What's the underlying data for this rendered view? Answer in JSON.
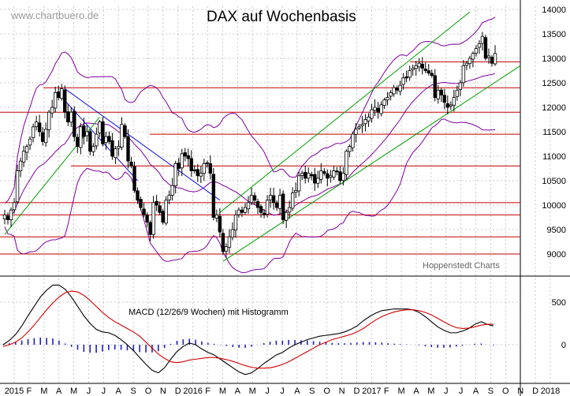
{
  "watermark": "www.chartbuero.de",
  "footer_note": "Hoppenstedt Charts",
  "chart_data": [
    {
      "type": "candlestick",
      "title": "DAX auf Wochenbasis",
      "y_ticks": [
        9000,
        9500,
        10000,
        10500,
        11000,
        11500,
        12000,
        12500,
        13000,
        13500,
        14000
      ],
      "ylim": [
        8750,
        14000
      ],
      "horizontal_levels": [
        9000,
        9350,
        9800,
        10050,
        10800,
        11450,
        11900,
        12400,
        12930
      ],
      "grid": true,
      "colors": {
        "up": "#ffffff",
        "down": "#000000",
        "bollinger": "#8000a0",
        "trendline": "#1010e0",
        "channel": "#00a000",
        "support": "#c00000"
      },
      "series": [
        {
          "name": "DAX weekly close",
          "values": [
            9800,
            9700,
            9900,
            10050,
            10700,
            10900,
            11100,
            11200,
            11350,
            11600,
            11700,
            11500,
            11300,
            11550,
            11900,
            12000,
            12300,
            12200,
            12380,
            11900,
            11700,
            11900,
            11400,
            11200,
            11600,
            11400,
            11500,
            11100,
            11200,
            11450,
            11700,
            11250,
            11400,
            11300,
            11000,
            11150,
            11200,
            11650,
            11400,
            10900,
            10800,
            10300,
            10100,
            9950,
            9800,
            9650,
            9400,
            10050,
            10000,
            9850,
            9650,
            10100,
            10200,
            10400,
            10850,
            10750,
            11050,
            11000,
            10950,
            10700,
            10700,
            10600,
            10650,
            10850,
            10850,
            10650,
            9750,
            9800,
            9450,
            9050,
            9150,
            9350,
            9500,
            9800,
            9900,
            9850,
            9950,
            10050,
            10200,
            10100,
            9950,
            9850,
            9800,
            10100,
            10200,
            10050,
            9950,
            10200,
            9700,
            9850,
            9950,
            10250,
            10300,
            10600,
            10650,
            10550,
            10650,
            10600,
            10450,
            10550,
            10700,
            10650,
            10550,
            10600,
            10700,
            10680,
            10500,
            10650,
            11100,
            11200,
            11450,
            11550,
            11600,
            11650,
            11750,
            11800,
            11950,
            12000,
            11900,
            12050,
            12150,
            12200,
            12300,
            12400,
            12350,
            12450,
            12600,
            12600,
            12750,
            12800,
            12850,
            12900,
            12800,
            12750,
            12700,
            12650,
            12200,
            12350,
            12250,
            12100,
            12000,
            12050,
            12200,
            12350,
            12500,
            12850,
            12900,
            13000,
            13100,
            13200,
            13300,
            13450,
            13000,
            13050,
            12900,
            13100
          ]
        }
      ]
    },
    {
      "type": "line",
      "title": "MACD (12/26/9 Wochen) mit Histogramm",
      "y_ticks": [
        0,
        500
      ],
      "ylim": [
        -500,
        800
      ],
      "x_ticks": [
        "2015",
        "F",
        "M",
        "A",
        "M",
        "J",
        "J",
        "A",
        "S",
        "O",
        "N",
        "D",
        "2016",
        "F",
        "M",
        "A",
        "M",
        "J",
        "J",
        "A",
        "S",
        "O",
        "N",
        "D",
        "2017",
        "F",
        "M",
        "A",
        "M",
        "J",
        "J",
        "A",
        "S",
        "O",
        "N",
        "D",
        "2018"
      ],
      "series": [
        {
          "name": "MACD",
          "values": [
            0,
            50,
            120,
            220,
            340,
            450,
            560,
            640,
            700,
            700,
            650,
            560,
            450,
            340,
            250,
            180,
            150,
            140,
            110,
            60,
            0,
            -70,
            -150,
            -230,
            -300,
            -330,
            -270,
            -170,
            -80,
            -20,
            20,
            0,
            -50,
            -90,
            -120,
            -170,
            -220,
            -270,
            -320,
            -350,
            -330,
            -280,
            -220,
            -170,
            -120,
            -90,
            -40,
            0,
            30,
            60,
            80,
            100,
            110,
            120,
            130,
            150,
            180,
            220,
            280,
            330,
            370,
            400,
            410,
            420,
            420,
            420,
            410,
            380,
            330,
            270,
            210,
            170,
            140,
            140,
            160,
            190,
            240,
            270,
            240,
            220
          ]
        },
        {
          "name": "Signal",
          "values": [
            -20,
            0,
            30,
            80,
            150,
            230,
            320,
            410,
            490,
            560,
            610,
            630,
            620,
            580,
            520,
            450,
            380,
            320,
            270,
            230,
            190,
            150,
            100,
            30,
            -40,
            -110,
            -160,
            -200,
            -210,
            -200,
            -180,
            -170,
            -160,
            -150,
            -150,
            -160,
            -175,
            -195,
            -220,
            -245,
            -265,
            -275,
            -275,
            -270,
            -255,
            -230,
            -200,
            -160,
            -120,
            -80,
            -40,
            0,
            30,
            60,
            80,
            100,
            120,
            150,
            190,
            240,
            290,
            330,
            360,
            385,
            400,
            410,
            410,
            400,
            380,
            350,
            310,
            270,
            230,
            200,
            190,
            195,
            210,
            230,
            240,
            240
          ]
        }
      ],
      "histogram": [
        20,
        50,
        90,
        140,
        190,
        220,
        240,
        230,
        210,
        140,
        40,
        -70,
        -170,
        -240,
        -270,
        -270,
        -230,
        -180,
        -160,
        -170,
        -190,
        -220,
        -250,
        -260,
        -260,
        -220,
        -110,
        30,
        130,
        180,
        200,
        170,
        110,
        60,
        30,
        -10,
        -45,
        -75,
        -100,
        -105,
        -65,
        -5,
        55,
        100,
        135,
        140,
        160,
        160,
        150,
        140,
        120,
        100,
        80,
        60,
        50,
        50,
        60,
        70,
        90,
        90,
        80,
        70,
        50,
        35,
        20,
        10,
        0,
        -20,
        -50,
        -80,
        -100,
        -100,
        -90,
        -60,
        -30,
        -5,
        30,
        40,
        0,
        -20
      ]
    }
  ]
}
